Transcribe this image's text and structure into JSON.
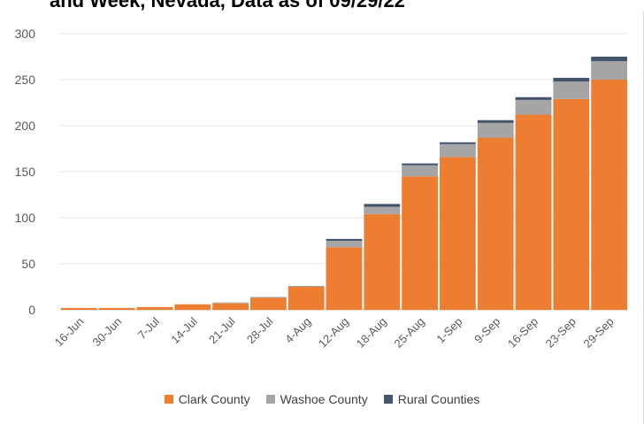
{
  "chart_data": {
    "type": "bar",
    "stacked": true,
    "title": "and Week, Nevada, Data as of 09/29/22",
    "categories": [
      "16-Jun",
      "30-Jun",
      "7-Jul",
      "14-Jul",
      "21-Jul",
      "28-Jul",
      "4-Aug",
      "12-Aug",
      "18-Aug",
      "25-Aug",
      "1-Sep",
      "9-Sep",
      "16-Sep",
      "23-Sep",
      "29-Sep"
    ],
    "series": [
      {
        "name": "Clark County",
        "color": "#ed7d31",
        "values": [
          2,
          2,
          3,
          6,
          7,
          13,
          25,
          68,
          104,
          145,
          166,
          187,
          212,
          229,
          250
        ]
      },
      {
        "name": "Washoe County",
        "color": "#a5a5a5",
        "values": [
          0,
          0,
          0,
          0,
          1,
          1,
          1,
          7,
          8,
          12,
          14,
          16,
          16,
          19,
          20
        ]
      },
      {
        "name": "Rural Counties",
        "color": "#44546a",
        "values": [
          0,
          0,
          0,
          0,
          0,
          0,
          0,
          2,
          3,
          2,
          2,
          3,
          3,
          4,
          5
        ]
      }
    ],
    "yticks": [
      0,
      50,
      100,
      150,
      200,
      250,
      300
    ],
    "ylim": [
      0,
      300
    ],
    "grid": true,
    "legend": "bottom",
    "xlabel": "",
    "ylabel": ""
  }
}
